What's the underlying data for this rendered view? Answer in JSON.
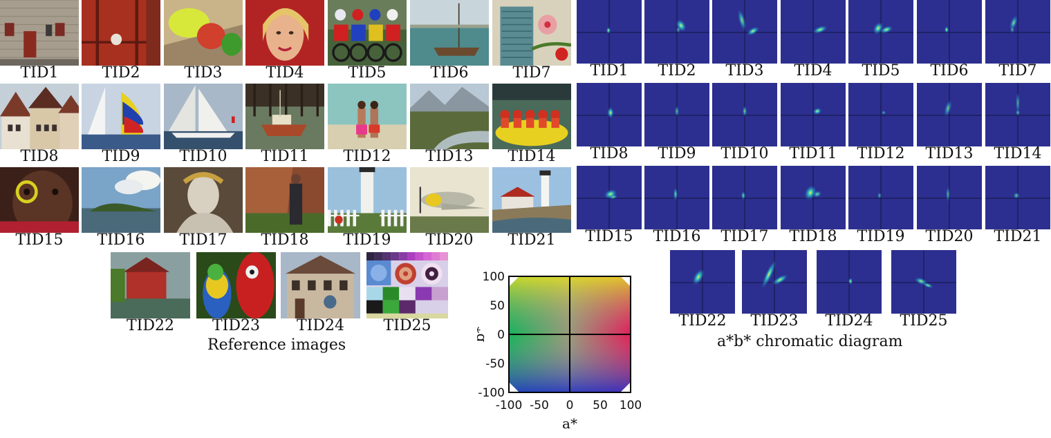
{
  "reference_images": {
    "caption": "Reference images",
    "items": [
      {
        "label": "TID1",
        "scene": "house-facade"
      },
      {
        "label": "TID2",
        "scene": "red-door"
      },
      {
        "label": "TID3",
        "scene": "hats"
      },
      {
        "label": "TID4",
        "scene": "portrait-woman"
      },
      {
        "label": "TID5",
        "scene": "motocross"
      },
      {
        "label": "TID6",
        "scene": "sailboat-harbor"
      },
      {
        "label": "TID7",
        "scene": "window-flower"
      },
      {
        "label": "TID8",
        "scene": "village-houses"
      },
      {
        "label": "TID9",
        "scene": "sail-race"
      },
      {
        "label": "TID10",
        "scene": "yacht-race"
      },
      {
        "label": "TID11",
        "scene": "boat-dock"
      },
      {
        "label": "TID12",
        "scene": "beach-couple"
      },
      {
        "label": "TID13",
        "scene": "mountain-river"
      },
      {
        "label": "TID14",
        "scene": "river-rafting"
      },
      {
        "label": "TID15",
        "scene": "child-face"
      },
      {
        "label": "TID16",
        "scene": "island-sky"
      },
      {
        "label": "TID17",
        "scene": "statue"
      },
      {
        "label": "TID18",
        "scene": "woman-rock"
      },
      {
        "label": "TID19",
        "scene": "lighthouse-fence"
      },
      {
        "label": "TID20",
        "scene": "airplane"
      },
      {
        "label": "TID21",
        "scene": "lighthouse-coast"
      },
      {
        "label": "TID22",
        "scene": "red-barn"
      },
      {
        "label": "TID23",
        "scene": "parrots"
      },
      {
        "label": "TID24",
        "scene": "painted-house"
      },
      {
        "label": "TID25",
        "scene": "test-chart"
      }
    ]
  },
  "chromatic_diagrams": {
    "caption": "a*b* chromatic diagram",
    "background_color": "#2c2f8f",
    "items": [
      {
        "label": "TID1"
      },
      {
        "label": "TID2"
      },
      {
        "label": "TID3"
      },
      {
        "label": "TID4"
      },
      {
        "label": "TID5"
      },
      {
        "label": "TID6"
      },
      {
        "label": "TID7"
      },
      {
        "label": "TID8"
      },
      {
        "label": "TID9"
      },
      {
        "label": "TID10"
      },
      {
        "label": "TID11"
      },
      {
        "label": "TID12"
      },
      {
        "label": "TID13"
      },
      {
        "label": "TID14"
      },
      {
        "label": "TID15"
      },
      {
        "label": "TID16"
      },
      {
        "label": "TID17"
      },
      {
        "label": "TID18"
      },
      {
        "label": "TID19"
      },
      {
        "label": "TID20"
      },
      {
        "label": "TID21"
      },
      {
        "label": "TID22"
      },
      {
        "label": "TID23"
      },
      {
        "label": "TID24"
      },
      {
        "label": "TID25"
      }
    ]
  },
  "lab_plane": {
    "xlabel": "a*",
    "ylabel": "b*",
    "xticks": [
      "-100",
      "-50",
      "0",
      "50",
      "100"
    ],
    "yticks": [
      "100",
      "50",
      "0",
      "-50",
      "-100"
    ],
    "xlim": [
      -100,
      100
    ],
    "ylim": [
      -100,
      100
    ]
  }
}
